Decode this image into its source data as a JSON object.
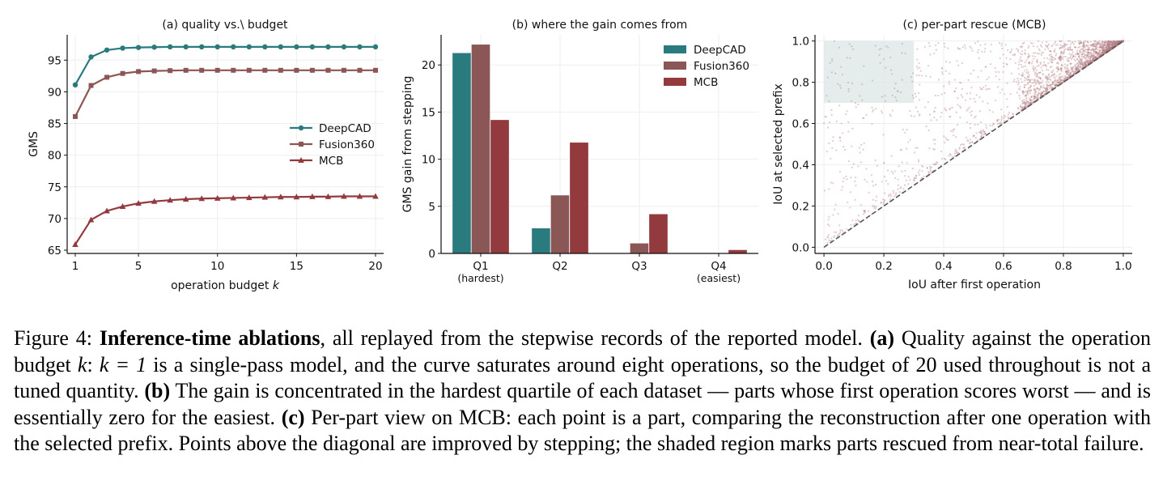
{
  "colors": {
    "deepcad": "#2a7b7d",
    "fusion360": "#8b5656",
    "mcb": "#923a3e",
    "diagonal": "#555555",
    "shade": "#dbe7e6",
    "scatter": "#b07a80",
    "grid": "#eeeeee"
  },
  "chart_data": [
    {
      "type": "line",
      "title": "(a) quality vs.\\ budget",
      "xlabel": "operation budget",
      "xlabel_var": "k",
      "ylabel": "GMS",
      "xlim": [
        1,
        20
      ],
      "ylim": [
        65,
        99
      ],
      "xticks": [
        1,
        5,
        10,
        15,
        20
      ],
      "yticks": [
        65,
        70,
        75,
        80,
        85,
        90,
        95
      ],
      "grid": true,
      "legend": "center-right",
      "x": [
        1,
        2,
        3,
        4,
        5,
        6,
        7,
        8,
        9,
        10,
        11,
        12,
        13,
        14,
        15,
        16,
        17,
        18,
        19,
        20
      ],
      "series": [
        {
          "name": "DeepCAD",
          "marker": "circle",
          "values": [
            91.1,
            95.5,
            96.6,
            96.9,
            97.0,
            97.05,
            97.1,
            97.1,
            97.1,
            97.1,
            97.1,
            97.1,
            97.1,
            97.1,
            97.1,
            97.1,
            97.1,
            97.1,
            97.1,
            97.1
          ]
        },
        {
          "name": "Fusion360",
          "marker": "square",
          "values": [
            86.1,
            91.0,
            92.3,
            92.9,
            93.2,
            93.3,
            93.35,
            93.4,
            93.4,
            93.4,
            93.4,
            93.4,
            93.4,
            93.4,
            93.4,
            93.4,
            93.4,
            93.4,
            93.4,
            93.4
          ]
        },
        {
          "name": "MCB",
          "marker": "triangle",
          "values": [
            65.9,
            69.8,
            71.2,
            71.9,
            72.4,
            72.7,
            72.9,
            73.05,
            73.15,
            73.2,
            73.25,
            73.3,
            73.35,
            73.4,
            73.4,
            73.45,
            73.45,
            73.5,
            73.5,
            73.5
          ]
        }
      ]
    },
    {
      "type": "bar",
      "title": "(b) where the gain comes from",
      "xlabel": "",
      "ylabel": "GMS gain from stepping",
      "ylim": [
        0,
        23.2
      ],
      "yticks": [
        0,
        5,
        10,
        15,
        20
      ],
      "grid": true,
      "legend": "top-right",
      "categories": [
        "Q1",
        "Q2",
        "Q3",
        "Q4"
      ],
      "category_sublabels": [
        "(hardest)",
        "",
        "",
        "(easiest)"
      ],
      "series": [
        {
          "name": "DeepCAD",
          "values": [
            21.3,
            2.7,
            0.05,
            0.0
          ]
        },
        {
          "name": "Fusion360",
          "values": [
            22.2,
            6.2,
            1.1,
            0.0
          ]
        },
        {
          "name": "MCB",
          "values": [
            14.2,
            11.8,
            4.2,
            0.4
          ]
        }
      ]
    },
    {
      "type": "scatter",
      "title": "(c) per-part rescue (MCB)",
      "xlabel": "IoU after first operation",
      "ylabel": "IoU at selected prefix",
      "xlim": [
        -0.03,
        1.03
      ],
      "ylim": [
        -0.03,
        1.03
      ],
      "xticks": [
        0.0,
        0.2,
        0.4,
        0.6,
        0.8,
        1.0
      ],
      "yticks": [
        0.0,
        0.2,
        0.4,
        0.6,
        0.8,
        1.0
      ],
      "grid": true,
      "diagonal": [
        [
          0,
          0
        ],
        [
          1,
          1
        ]
      ],
      "shaded_region": {
        "x": [
          0.0,
          0.3
        ],
        "y": [
          0.7,
          1.0
        ]
      },
      "n_points_approx": 2500
    }
  ],
  "caption": {
    "label": "Figure 4:",
    "bold_title": "Inference-time ablations",
    "s1": ", all replayed from the stepwise records of the reported model. ",
    "a_tag": "(a)",
    "a_text1": " Quality against the operation budget ",
    "a_var": "k",
    "a_text2": ": ",
    "a_eq": "k = 1",
    "a_text3": " is a single-pass model, and the curve saturates around eight operations, so the budget of 20 used throughout is not a tuned quantity. ",
    "b_tag": "(b)",
    "b_text": " The gain is concentrated in the hardest quartile of each dataset — parts whose first operation scores worst — and is essentially zero for the easiest. ",
    "c_tag": "(c)",
    "c_text": " Per-part view on MCB: each point is a part, comparing the reconstruction after one operation with the selected prefix. Points above the diagonal are improved by stepping; the shaded region marks parts rescued from near-total failure."
  }
}
